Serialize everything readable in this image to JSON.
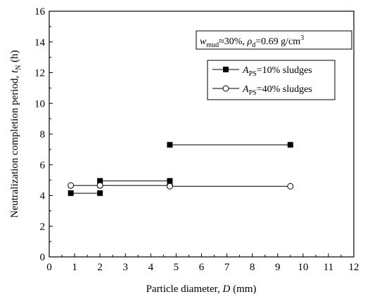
{
  "chart_data": {
    "type": "line",
    "xlabel": {
      "text": "Particle diameter, ",
      "var": "D",
      "unit": " (mm)"
    },
    "ylabel": {
      "text": "Neutralization completion period, ",
      "var": "t",
      "sub": "N",
      "unit": " (h)"
    },
    "xlim": [
      0,
      12
    ],
    "ylim": [
      0,
      16
    ],
    "xticks": [
      0,
      1,
      2,
      3,
      4,
      5,
      6,
      7,
      8,
      9,
      10,
      11,
      12
    ],
    "yticks": [
      0,
      2,
      4,
      6,
      8,
      10,
      12,
      14,
      16
    ],
    "grid": false,
    "legend_position": "top-right",
    "annotation": {
      "w": "w",
      "w_sub": "mud",
      "w_val": "≈30%, ",
      "rho": "ρ",
      "rho_sub": "d",
      "rho_val": "=0.69 g/cm",
      "rho_sup": "3"
    },
    "series": [
      {
        "name": {
          "A": "A",
          "sub": "PS",
          "rest": "=10% sludges"
        },
        "marker": "filled-square",
        "color": "#000000",
        "segments": [
          [
            [
              0.85,
              4.15
            ],
            [
              2.0,
              4.15
            ]
          ],
          [
            [
              2.0,
              4.95
            ],
            [
              4.75,
              4.95
            ]
          ],
          [
            [
              4.75,
              7.3
            ],
            [
              9.5,
              7.3
            ]
          ]
        ]
      },
      {
        "name": {
          "A": "A",
          "sub": "PS",
          "rest": "=40% sludges"
        },
        "marker": "open-circle",
        "color": "#000000",
        "segments": [
          [
            [
              0.85,
              4.65
            ],
            [
              2.0,
              4.65
            ]
          ],
          [
            [
              2.0,
              4.65
            ],
            [
              4.75,
              4.65
            ]
          ],
          [
            [
              4.75,
              4.6
            ],
            [
              9.5,
              4.6
            ]
          ]
        ]
      }
    ]
  }
}
